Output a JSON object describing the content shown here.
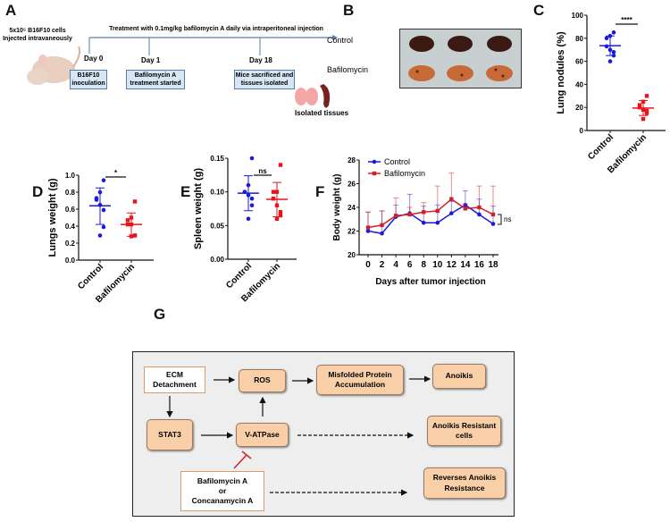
{
  "panels": {
    "a": "A",
    "b": "B",
    "c": "C",
    "d": "D",
    "e": "E",
    "f": "F",
    "g": "G"
  },
  "panel_a": {
    "injection_text": "5x10⁵ B16F10 cells Injected intravaneously",
    "treatment_text": "Treatment with 0.1mg/kg bafilomycin A daily via intraperitoneal injection",
    "timeline": [
      {
        "day": "Day 0",
        "box": "B16F10 inoculation"
      },
      {
        "day": "Day 1",
        "box": "Bafilomycin A treatment started"
      },
      {
        "day": "Day 18",
        "box": "Mice sacrificed and tissues isolated"
      }
    ],
    "isolated_label": "Isolated tissues",
    "colors": {
      "box_fill": "#d6e6f4",
      "box_border": "#5a7fa6",
      "line": "#5a7fa6"
    }
  },
  "panel_b": {
    "rows": [
      "Control",
      "Bafilomycin"
    ]
  },
  "chart_data": [
    {
      "id": "C",
      "type": "scatter",
      "ylabel": "Lung nodules (%)",
      "ylim": [
        0,
        100
      ],
      "yticks": [
        0,
        20,
        40,
        60,
        80,
        100
      ],
      "categories": [
        "Control",
        "Bafilomycin"
      ],
      "significance": "****",
      "series": [
        {
          "values": [
            85,
            82,
            80,
            73,
            70,
            68,
            65,
            60
          ],
          "mean": 73.5,
          "sd": [
            65,
            82
          ],
          "color": "#1a1adb",
          "marker": "circle"
        },
        {
          "values": [
            30,
            25,
            22,
            20,
            18,
            17,
            15,
            10
          ],
          "mean": 19.5,
          "sd": [
            13,
            26
          ],
          "color": "#e8141c",
          "marker": "square"
        }
      ]
    },
    {
      "id": "D",
      "type": "scatter",
      "ylabel": "Lungs weight (g)",
      "ylim": [
        0,
        1.0
      ],
      "yticks": [
        "0.0",
        "0.2",
        "0.4",
        "0.6",
        "0.8",
        "1.0"
      ],
      "categories": [
        "Control",
        "Bafilomycin"
      ],
      "significance": "*",
      "series": [
        {
          "values": [
            0.94,
            0.8,
            0.73,
            0.71,
            0.65,
            0.59,
            0.39,
            0.29
          ],
          "mean": 0.64,
          "sd": [
            0.42,
            0.85
          ],
          "color": "#1a1adb",
          "marker": "circle"
        },
        {
          "values": [
            0.69,
            0.5,
            0.47,
            0.42,
            0.42,
            0.29,
            0.29,
            0.28
          ],
          "mean": 0.42,
          "sd": [
            0.28,
            0.555
          ],
          "color": "#e8141c",
          "marker": "square"
        }
      ]
    },
    {
      "id": "E",
      "type": "scatter",
      "ylabel": "Spleen weight (g)",
      "ylim": [
        0,
        0.15
      ],
      "yticks": [
        "0.00",
        "0.05",
        "0.10",
        "0.15"
      ],
      "categories": [
        "Control",
        "Bafilomycin"
      ],
      "significance": "ns",
      "series": [
        {
          "values": [
            0.15,
            0.11,
            0.1,
            0.1,
            0.095,
            0.09,
            0.08,
            0.06
          ],
          "mean": 0.098,
          "sd": [
            0.072,
            0.124
          ],
          "color": "#1a1adb",
          "marker": "circle"
        },
        {
          "values": [
            0.14,
            0.1,
            0.1,
            0.09,
            0.08,
            0.07,
            0.065,
            0.06
          ],
          "mean": 0.089,
          "sd": [
            0.063,
            0.114
          ],
          "color": "#e8141c",
          "marker": "square"
        }
      ]
    },
    {
      "id": "F",
      "type": "line",
      "xlabel": "Days after tumor injection",
      "ylabel": "Body weight (g)",
      "x": [
        0,
        2,
        4,
        6,
        8,
        10,
        12,
        14,
        16,
        18
      ],
      "xlim": [
        0,
        18
      ],
      "ylim": [
        20,
        28
      ],
      "yticks": [
        20,
        22,
        24,
        26,
        28
      ],
      "legend": "top-left",
      "significance": "ns",
      "series": [
        {
          "name": "Control",
          "values": [
            22.0,
            21.8,
            23.2,
            23.5,
            22.7,
            22.7,
            23.5,
            24.2,
            23.4,
            22.6
          ],
          "err_upper": [
            23.6,
            23.7,
            24.2,
            25.1,
            24.1,
            24.2,
            24.5,
            25.4,
            24.7,
            24.1
          ],
          "color": "#1a1adb",
          "marker": "circle"
        },
        {
          "name": "Bafilomycin",
          "values": [
            22.3,
            22.5,
            23.3,
            23.4,
            23.6,
            23.7,
            24.7,
            23.9,
            24.0,
            23.4
          ],
          "err_upper": [
            23.6,
            23.7,
            24.8,
            24.0,
            24.4,
            25.8,
            26.9,
            24.3,
            25.8,
            25.8
          ],
          "color": "#d0202a",
          "marker": "square"
        }
      ]
    }
  ],
  "panel_g": {
    "ecm": "ECM Detachment",
    "ros": "ROS",
    "misfolded": "Misfolded Protein Accumulation",
    "anoikis": "Anoikis",
    "stat3": "STAT3",
    "vatpase": "V-ATPase",
    "resistant": "Anoikis Resistant cells",
    "inhibitor_1": "Bafilomycin A",
    "inhibitor_or": "or",
    "inhibitor_2": "Concanamycin A",
    "reverses": "Reverses Anoikis Resistance",
    "colors": {
      "box_fill": "#f9cfa8",
      "inhibit": "#d0202a",
      "background": "#eeeeee"
    }
  }
}
